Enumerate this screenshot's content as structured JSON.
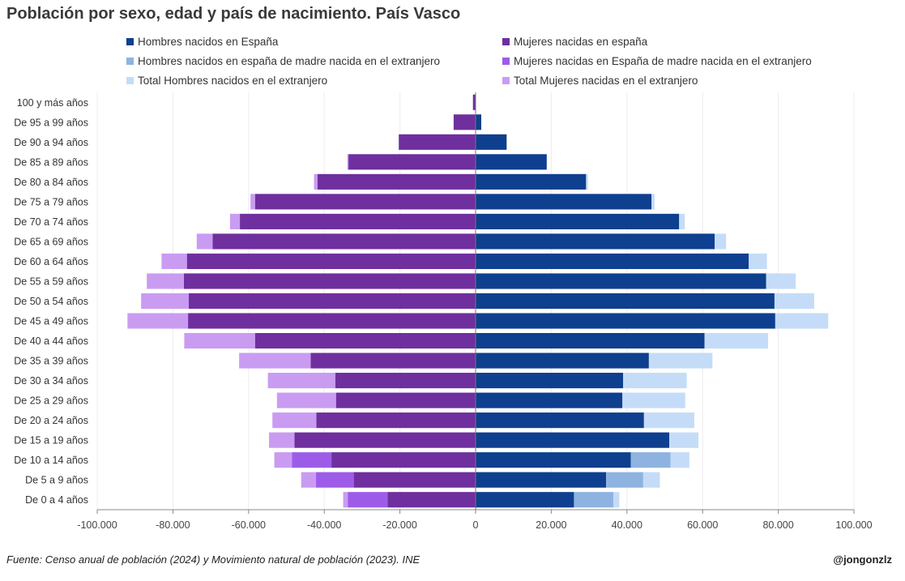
{
  "title": "Población por sexo, edad y país de nacimiento. País Vasco",
  "footer": {
    "source": "Fuente: Censo anual de población (2024) y Movimiento natural de población (2023). INE",
    "handle": "@jongonzlz"
  },
  "chart_data": {
    "type": "bar",
    "orientation": "horizontal",
    "stacked": true,
    "title": "Población por sexo, edad y país de nacimiento. País Vasco",
    "xlim": [
      -100000,
      100000
    ],
    "x_ticks": [
      "-100.000",
      "-80.000",
      "-60.000",
      "-40.000",
      "-20.000",
      "0",
      "20.000",
      "40.000",
      "60.000",
      "80.000",
      "100.000"
    ],
    "x_tick_values": [
      -100000,
      -80000,
      -60000,
      -40000,
      -20000,
      0,
      20000,
      40000,
      60000,
      80000,
      100000
    ],
    "grid": true,
    "legend_position": "top",
    "categories": [
      "100 y más años",
      "De 95 a 99 años",
      "De 90 a 94 años",
      "De 85 a 89 años",
      "De 80 a 84 años",
      "De 75 a 79 años",
      "De 70 a 74 años",
      "De 65 a 69 años",
      "De 60 a 64 años",
      "De 55 a 59 años",
      "De 50 a 54 años",
      "De 45 a 49 años",
      "De 40 a 44 años",
      "De 35 a 39 años",
      "De 30 a 34 años",
      "De 25 a 29 años",
      "De 20 a 24 años",
      "De 15 a 19 años",
      "De 10 a 14 años",
      "De 5 a 9 años",
      "De 0 a 4 años"
    ],
    "series": [
      {
        "name": "Hombres nacidos en España",
        "side": "right",
        "color": "#0f3f8f",
        "values": [
          0,
          1500,
          8200,
          18800,
          29200,
          46500,
          53800,
          63200,
          72200,
          76800,
          79000,
          79200,
          60500,
          45800,
          39000,
          38800,
          44500,
          51200,
          41000,
          34500,
          26000
        ]
      },
      {
        "name": "Hombres nacidos en españa de madre nacida en el extranjero",
        "side": "right",
        "color": "#8fb3e0",
        "values": [
          0,
          0,
          0,
          0,
          0,
          0,
          0,
          0,
          0,
          0,
          0,
          0,
          0,
          0,
          0,
          0,
          0,
          0,
          10500,
          9800,
          10400
        ]
      },
      {
        "name": "Total Hombres nacidos en el extranjero",
        "side": "right",
        "color": "#c5dcf8",
        "values": [
          0,
          0,
          0,
          0,
          500,
          800,
          1500,
          3000,
          4800,
          7800,
          10500,
          14000,
          16800,
          16800,
          16800,
          16600,
          13300,
          7700,
          5000,
          4400,
          1600
        ]
      },
      {
        "name": "Mujeres nacidas en españa",
        "side": "left",
        "color": "#6f2f9e",
        "values": [
          -700,
          -5800,
          -20300,
          -33600,
          -41800,
          -58300,
          -62300,
          -69500,
          -76300,
          -77100,
          -75800,
          -76000,
          -58300,
          -43600,
          -37100,
          -36900,
          -42100,
          -47900,
          -38100,
          -32200,
          -23300
        ]
      },
      {
        "name": "Mujeres nacidas en España de madre nacida en el extranjero",
        "side": "left",
        "color": "#9d5ce8",
        "values": [
          0,
          0,
          0,
          0,
          0,
          0,
          0,
          0,
          0,
          0,
          0,
          0,
          0,
          0,
          0,
          0,
          0,
          0,
          -10400,
          -10000,
          -10500
        ]
      },
      {
        "name": "Total Mujeres nacidas en el extranjero",
        "side": "left",
        "color": "#c99cf2",
        "values": [
          0,
          0,
          0,
          -300,
          -900,
          -1200,
          -2600,
          -4200,
          -6700,
          -9800,
          -12600,
          -16000,
          -18700,
          -18900,
          -17800,
          -15600,
          -11600,
          -6700,
          -4700,
          -3900,
          -1200
        ]
      }
    ]
  },
  "legend": [
    {
      "label": "Hombres nacidos en España",
      "color": "#0f3f8f"
    },
    {
      "label": "Mujeres nacidas en españa",
      "color": "#6f2f9e"
    },
    {
      "label": "Hombres nacidos en españa de madre nacida en el extranjero",
      "color": "#8fb3e0"
    },
    {
      "label": "Mujeres nacidas en España de madre nacida en el extranjero",
      "color": "#9d5ce8"
    },
    {
      "label": "Total Hombres nacidos en el extranjero",
      "color": "#c5dcf8"
    },
    {
      "label": "Total Mujeres nacidas en el extranjero",
      "color": "#c99cf2"
    }
  ]
}
